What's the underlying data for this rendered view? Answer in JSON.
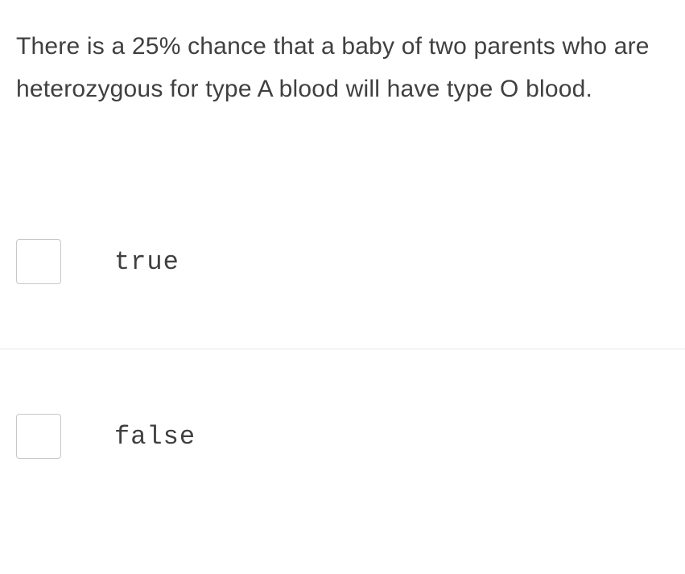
{
  "question": {
    "text": "There is a 25% chance that a baby of two parents who are heterozygous for type A blood will have type O blood."
  },
  "options": [
    {
      "label": "true"
    },
    {
      "label": "false"
    }
  ],
  "styling": {
    "background_color": "#ffffff",
    "question_text_color": "#404040",
    "question_font_size": 30,
    "question_font_weight": 300,
    "question_line_height": 1.75,
    "option_label_color": "#404040",
    "option_label_font_size": 32,
    "option_label_font_family": "monospace",
    "checkbox_border_color": "#c8c8c8",
    "checkbox_size": 56,
    "checkbox_border_radius": 4,
    "divider_color": "#e8e8e8"
  }
}
